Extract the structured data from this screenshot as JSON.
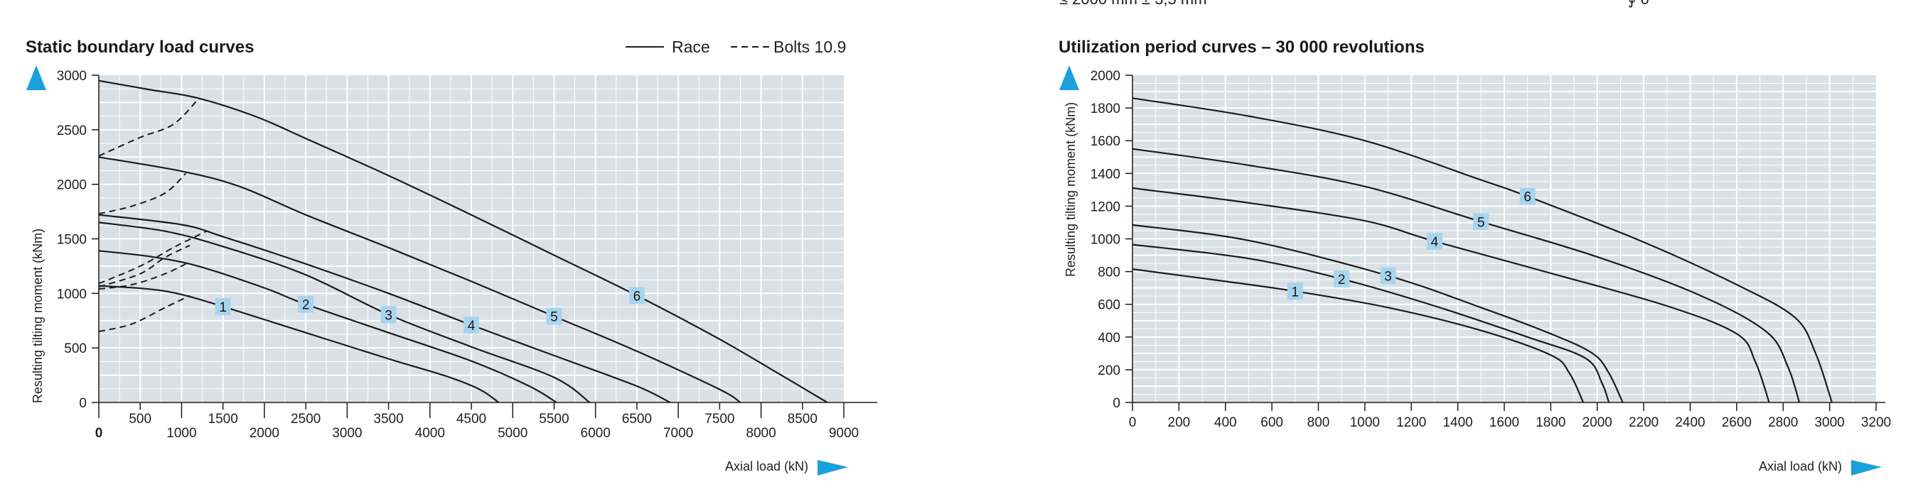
{
  "clipped_header": {
    "left": "≤ 2000 mm ± 3,5 mm",
    "right": "∮ 0"
  },
  "colors": {
    "plot_bg": "#d9e1e6",
    "grid": "#ffffff",
    "curve": "#1c1c1c",
    "accent_arrow": "#1aa0dc",
    "label_box": "#a9d4ee"
  },
  "chart_data": [
    {
      "type": "line",
      "title": "Static boundary load curves",
      "xlabel": "Axial load (kN)",
      "ylabel": "Resulting tilting moment (kNm)",
      "xlim": [
        0,
        9000
      ],
      "ylim": [
        0,
        3000
      ],
      "major_x_ticks": [
        0,
        1000,
        2000,
        3000,
        4000,
        5000,
        6000,
        7000,
        8000,
        9000
      ],
      "minor_x_ticks": [
        500,
        1500,
        2500,
        3500,
        4500,
        5500,
        6500,
        7500,
        8500
      ],
      "y_ticks": [
        0,
        500,
        1000,
        1500,
        2000,
        2500,
        3000
      ],
      "grid": true,
      "legend_position": "top-right",
      "legend": [
        {
          "label": "Race",
          "style": "solid"
        },
        {
          "label": "Bolts 10.9",
          "style": "dashed"
        }
      ],
      "series": [
        {
          "name": "1",
          "label_at": [
            1500,
            880
          ],
          "race": [
            [
              0,
              1070
            ],
            [
              600,
              1040
            ],
            [
              1000,
              990
            ],
            [
              1500,
              880
            ],
            [
              2500,
              640
            ],
            [
              3500,
              400
            ],
            [
              4200,
              240
            ],
            [
              4600,
              120
            ],
            [
              4830,
              0
            ]
          ],
          "bolts": [
            [
              0,
              650
            ],
            [
              400,
              720
            ],
            [
              800,
              870
            ],
            [
              1100,
              980
            ]
          ]
        },
        {
          "name": "2",
          "label_at": [
            2500,
            900
          ],
          "race": [
            [
              0,
              1390
            ],
            [
              600,
              1340
            ],
            [
              1200,
              1250
            ],
            [
              2000,
              1050
            ],
            [
              2500,
              900
            ],
            [
              3500,
              640
            ],
            [
              4500,
              380
            ],
            [
              5200,
              150
            ],
            [
              5530,
              0
            ]
          ],
          "bolts": [
            [
              0,
              1040
            ],
            [
              400,
              1080
            ],
            [
              800,
              1180
            ],
            [
              1100,
              1290
            ]
          ]
        },
        {
          "name": "3",
          "label_at": [
            3500,
            805
          ],
          "race": [
            [
              0,
              1650
            ],
            [
              800,
              1570
            ],
            [
              1500,
              1430
            ],
            [
              2500,
              1170
            ],
            [
              3500,
              805
            ],
            [
              4500,
              510
            ],
            [
              5500,
              230
            ],
            [
              5930,
              0
            ]
          ],
          "bolts": [
            [
              0,
              1060
            ],
            [
              500,
              1180
            ],
            [
              800,
              1330
            ],
            [
              1100,
              1440
            ]
          ]
        },
        {
          "name": "4",
          "label_at": [
            4500,
            710
          ],
          "race": [
            [
              0,
              1720
            ],
            [
              1000,
              1630
            ],
            [
              1500,
              1520
            ],
            [
              2500,
              1270
            ],
            [
              3500,
              1000
            ],
            [
              4500,
              710
            ],
            [
              5500,
              430
            ],
            [
              6500,
              150
            ],
            [
              6900,
              0
            ]
          ],
          "bolts": [
            [
              0,
              1090
            ],
            [
              500,
              1250
            ],
            [
              900,
              1420
            ],
            [
              1300,
              1570
            ]
          ]
        },
        {
          "name": "5",
          "label_at": [
            5500,
            790
          ],
          "race": [
            [
              0,
              2250
            ],
            [
              1000,
              2120
            ],
            [
              1700,
              1980
            ],
            [
              2500,
              1720
            ],
            [
              3500,
              1420
            ],
            [
              4500,
              1110
            ],
            [
              5500,
              790
            ],
            [
              6500,
              470
            ],
            [
              7500,
              120
            ],
            [
              7750,
              0
            ]
          ],
          "bolts": [
            [
              0,
              1730
            ],
            [
              400,
              1800
            ],
            [
              800,
              1920
            ],
            [
              1050,
              2100
            ]
          ]
        },
        {
          "name": "6",
          "label_at": [
            6500,
            980
          ],
          "race": [
            [
              0,
              2950
            ],
            [
              600,
              2870
            ],
            [
              1200,
              2790
            ],
            [
              1900,
              2620
            ],
            [
              2500,
              2420
            ],
            [
              3500,
              2080
            ],
            [
              4500,
              1720
            ],
            [
              5500,
              1350
            ],
            [
              6500,
              980
            ],
            [
              7500,
              580
            ],
            [
              8200,
              270
            ],
            [
              8800,
              0
            ]
          ],
          "bolts": [
            [
              0,
              2260
            ],
            [
              500,
              2430
            ],
            [
              900,
              2550
            ],
            [
              1200,
              2780
            ]
          ]
        }
      ]
    },
    {
      "type": "line",
      "title": "Utilization period curves – 30 000 revolutions",
      "xlabel": "Axial load (kN)",
      "ylabel": "Resulting tilting moment (kNm)",
      "xlim": [
        0,
        3200
      ],
      "ylim": [
        0,
        2000
      ],
      "x_ticks": [
        0,
        200,
        400,
        600,
        800,
        1000,
        1200,
        1400,
        1600,
        1800,
        2000,
        2200,
        2400,
        2600,
        2800,
        3000,
        3200
      ],
      "y_ticks": [
        0,
        200,
        400,
        600,
        800,
        1000,
        1200,
        1400,
        1600,
        1800,
        2000
      ],
      "grid": true,
      "series": [
        {
          "name": "1",
          "label_at": [
            700,
            680
          ],
          "points": [
            [
              0,
              815
            ],
            [
              400,
              740
            ],
            [
              700,
              680
            ],
            [
              1100,
              580
            ],
            [
              1500,
              440
            ],
            [
              1800,
              290
            ],
            [
              1880,
              180
            ],
            [
              1940,
              0
            ]
          ]
        },
        {
          "name": "2",
          "label_at": [
            900,
            755
          ],
          "points": [
            [
              0,
              965
            ],
            [
              500,
              880
            ],
            [
              900,
              755
            ],
            [
              1300,
              590
            ],
            [
              1700,
              400
            ],
            [
              1950,
              270
            ],
            [
              2020,
              120
            ],
            [
              2050,
              0
            ]
          ]
        },
        {
          "name": "3",
          "label_at": [
            1100,
            775
          ],
          "points": [
            [
              0,
              1085
            ],
            [
              500,
              990
            ],
            [
              1100,
              775
            ],
            [
              1500,
              580
            ],
            [
              1800,
              420
            ],
            [
              1980,
              300
            ],
            [
              2050,
              180
            ],
            [
              2110,
              0
            ]
          ]
        },
        {
          "name": "4",
          "label_at": [
            1300,
            985
          ],
          "points": [
            [
              0,
              1310
            ],
            [
              500,
              1220
            ],
            [
              1000,
              1110
            ],
            [
              1300,
              985
            ],
            [
              1800,
              790
            ],
            [
              2300,
              590
            ],
            [
              2600,
              420
            ],
            [
              2680,
              250
            ],
            [
              2740,
              0
            ]
          ]
        },
        {
          "name": "5",
          "label_at": [
            1500,
            1105
          ],
          "points": [
            [
              0,
              1550
            ],
            [
              500,
              1450
            ],
            [
              1000,
              1320
            ],
            [
              1500,
              1105
            ],
            [
              2000,
              890
            ],
            [
              2450,
              650
            ],
            [
              2730,
              430
            ],
            [
              2820,
              220
            ],
            [
              2870,
              0
            ]
          ]
        },
        {
          "name": "6",
          "label_at": [
            1700,
            1260
          ],
          "points": [
            [
              0,
              1860
            ],
            [
              500,
              1750
            ],
            [
              1000,
              1600
            ],
            [
              1500,
              1360
            ],
            [
              1700,
              1260
            ],
            [
              2200,
              980
            ],
            [
              2600,
              720
            ],
            [
              2850,
              520
            ],
            [
              2940,
              300
            ],
            [
              3010,
              0
            ]
          ]
        }
      ]
    }
  ]
}
